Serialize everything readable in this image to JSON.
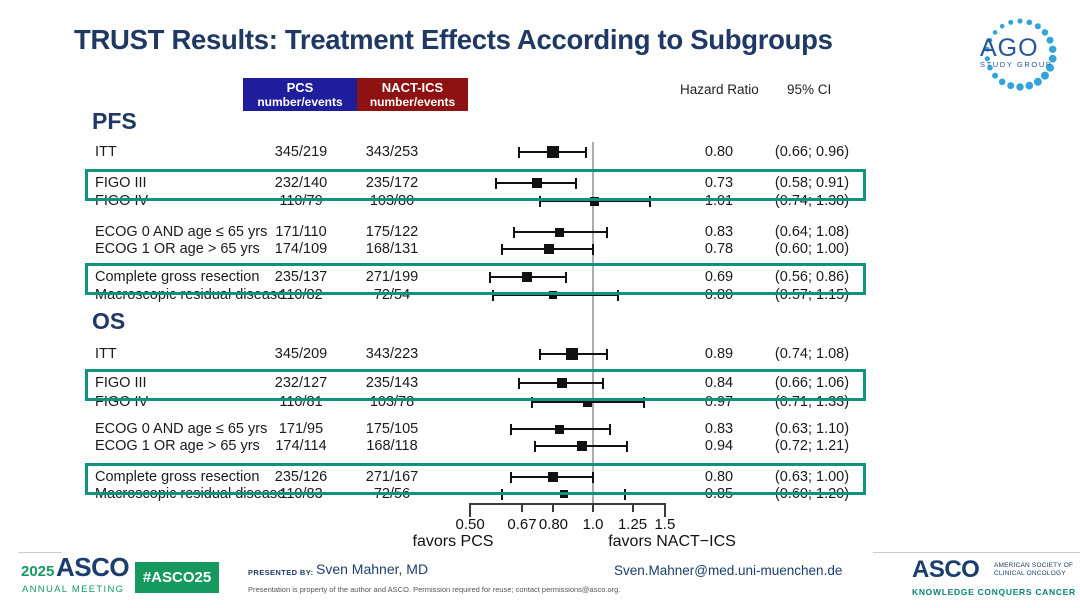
{
  "title": "TRUST Results: Treatment Effects According to Subgroups",
  "logo_ago": {
    "text": "AGO",
    "subtext": "STUDY GROUP"
  },
  "table_headers": {
    "pcs_line1": "PCS",
    "pcs_line2": "number/events",
    "nact_line1": "NACT-ICS",
    "nact_line2": "number/events",
    "hazard_ratio": "Hazard Ratio",
    "ci": "95% CI"
  },
  "chart_data": {
    "type": "forest",
    "x_scale": "log",
    "reference_value": 1.0,
    "axis_ticks": [
      {
        "label": "0.50",
        "value": 0.5
      },
      {
        "label": "0.67",
        "value": 0.67
      },
      {
        "label": "0.80",
        "value": 0.8
      },
      {
        "label": "1.0",
        "value": 1.0
      },
      {
        "label": "1.25",
        "value": 1.25
      },
      {
        "label": "1.5",
        "value": 1.5
      }
    ],
    "favors_left": "favors PCS",
    "favors_right": "favors NACT−ICS",
    "highlight_color": "#0e9478",
    "sections": [
      {
        "name": "PFS",
        "rows": [
          {
            "label": "ITT",
            "pcs": "345/219",
            "nact": "343/253",
            "hr": 0.8,
            "ci_low": 0.66,
            "ci_high": 0.96,
            "hr_text": "0.80",
            "ci_text": "(0.66; 0.96)",
            "highlight": false,
            "marker": 12
          },
          {
            "label": "FIGO III",
            "pcs": "232/140",
            "nact": "235/172",
            "hr": 0.73,
            "ci_low": 0.58,
            "ci_high": 0.91,
            "hr_text": "0.73",
            "ci_text": "(0.58; 0.91)",
            "highlight": true,
            "marker": 10
          },
          {
            "label": "FIGO IV",
            "pcs": "110/79",
            "nact": "103/80",
            "hr": 1.01,
            "ci_low": 0.74,
            "ci_high": 1.38,
            "hr_text": "1.01",
            "ci_text": "(0.74; 1.38)",
            "highlight": false,
            "marker": 9
          },
          {
            "label": "ECOG 0 AND age ≤ 65 yrs",
            "pcs": "171/110",
            "nact": "175/122",
            "hr": 0.83,
            "ci_low": 0.64,
            "ci_high": 1.08,
            "hr_text": "0.83",
            "ci_text": "(0.64; 1.08)",
            "highlight": false,
            "marker": 9
          },
          {
            "label": "ECOG 1 OR age > 65 yrs",
            "pcs": "174/109",
            "nact": "168/131",
            "hr": 0.78,
            "ci_low": 0.6,
            "ci_high": 1.0,
            "hr_text": "0.78",
            "ci_text": "(0.60; 1.00)",
            "highlight": false,
            "marker": 10
          },
          {
            "label": "Complete gross resection",
            "pcs": "235/137",
            "nact": "271/199",
            "hr": 0.69,
            "ci_low": 0.56,
            "ci_high": 0.86,
            "hr_text": "0.69",
            "ci_text": "(0.56; 0.86)",
            "highlight": true,
            "marker": 10
          },
          {
            "label": "Macroscopic residual disease",
            "pcs": "110/82",
            "nact": "72/54",
            "hr": 0.8,
            "ci_low": 0.57,
            "ci_high": 1.15,
            "hr_text": "0.80",
            "ci_text": "(0.57; 1.15)",
            "highlight": false,
            "marker": 8
          }
        ]
      },
      {
        "name": "OS",
        "rows": [
          {
            "label": "ITT",
            "pcs": "345/209",
            "nact": "343/223",
            "hr": 0.89,
            "ci_low": 0.74,
            "ci_high": 1.08,
            "hr_text": "0.89",
            "ci_text": "(0.74; 1.08)",
            "highlight": false,
            "marker": 12
          },
          {
            "label": "FIGO III",
            "pcs": "232/127",
            "nact": "235/143",
            "hr": 0.84,
            "ci_low": 0.66,
            "ci_high": 1.06,
            "hr_text": "0.84",
            "ci_text": "(0.66; 1.06)",
            "highlight": true,
            "marker": 10
          },
          {
            "label": "FIGO IV",
            "pcs": "110/81",
            "nact": "103/78",
            "hr": 0.97,
            "ci_low": 0.71,
            "ci_high": 1.33,
            "hr_text": "0.97",
            "ci_text": "(0.71; 1.33)",
            "highlight": false,
            "marker": 9
          },
          {
            "label": "ECOG 0 AND age ≤ 65 yrs",
            "pcs": "171/95",
            "nact": "175/105",
            "hr": 0.83,
            "ci_low": 0.63,
            "ci_high": 1.1,
            "hr_text": "0.83",
            "ci_text": "(0.63; 1.10)",
            "highlight": false,
            "marker": 9
          },
          {
            "label": "ECOG 1 OR age > 65 yrs",
            "pcs": "174/114",
            "nact": "168/118",
            "hr": 0.94,
            "ci_low": 0.72,
            "ci_high": 1.21,
            "hr_text": "0.94",
            "ci_text": "(0.72; 1.21)",
            "highlight": false,
            "marker": 10
          },
          {
            "label": "Complete gross resection",
            "pcs": "235/126",
            "nact": "271/167",
            "hr": 0.8,
            "ci_low": 0.63,
            "ci_high": 1.0,
            "hr_text": "0.80",
            "ci_text": "(0.63; 1.00)",
            "highlight": true,
            "marker": 10
          },
          {
            "label": "Macroscopic residual disease",
            "pcs": "110/83",
            "nact": "72/56",
            "hr": 0.85,
            "ci_low": 0.6,
            "ci_high": 1.2,
            "hr_text": "0.85",
            "ci_text": "(0.60; 1.20)",
            "highlight": false,
            "marker": 8
          }
        ]
      }
    ]
  },
  "footer": {
    "year": "2025",
    "asco_left": "ASCO",
    "annual_meeting": "ANNUAL MEETING",
    "badge": "#ASCO25",
    "presented_by_label": "PRESENTED BY:",
    "presenter": "Sven Mahner, MD",
    "disclaimer": "Presentation is property of the author and ASCO. Permission required for reuse; contact permissions@asco.org.",
    "email": "Sven.Mahner@med.uni-muenchen.de",
    "asco_right": "ASCO",
    "society_line1": "AMERICAN SOCIETY OF",
    "society_line2": "CLINICAL ONCOLOGY",
    "tagline": "KNOWLEDGE CONQUERS CANCER"
  },
  "colors": {
    "title_navy": "#1f3864",
    "pcs_blue": "#1e1e9c",
    "nact_red": "#8e1212",
    "highlight_green": "#0e9478",
    "asco_navy": "#1a3e6e",
    "asco_green": "#169a62",
    "badge_green": "#16995f",
    "tagline_teal": "#0a8276",
    "ago_blue": "#27549b",
    "ago_dots": "#33a3dc"
  }
}
